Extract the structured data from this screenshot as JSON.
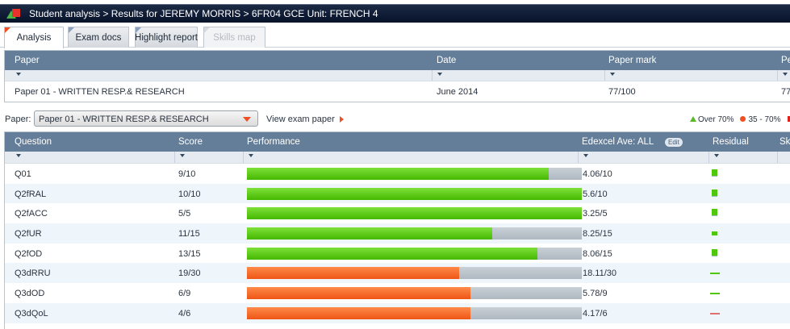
{
  "title": "Student analysis > Results for JEREMY MORRIS > 6FR04 GCE Unit: FRENCH 4",
  "tabs": [
    {
      "label": "Analysis",
      "state": "active"
    },
    {
      "label": "Exam docs",
      "state": "normal"
    },
    {
      "label": "Highlight report",
      "state": "normal"
    },
    {
      "label": "Skills map",
      "state": "disabled"
    }
  ],
  "paper_table": {
    "columns": [
      "Paper",
      "Date",
      "Paper mark",
      "Pe"
    ],
    "row": [
      "Paper 01 - WRITTEN RESP.& RESEARCH",
      "June 2014",
      "77/100",
      "77"
    ]
  },
  "selector": {
    "label": "Paper:",
    "value": "Paper 01 - WRITTEN RESP.& RESEARCH",
    "view_link": "View exam paper"
  },
  "legend": [
    {
      "label": "Over 70%",
      "color": "#5cb82a",
      "icon": "triangle-icon"
    },
    {
      "label": "35 - 70%",
      "color": "#f04e23",
      "icon": "circle-icon"
    },
    {
      "label": "",
      "color": "#e0201b",
      "icon": "square-icon"
    }
  ],
  "colors": {
    "green": "#52c80a",
    "orange": "#f26522",
    "header": "#647e99",
    "residual_green": "#4fc80c",
    "residual_red": "#e07070"
  },
  "question_table": {
    "columns": [
      "Question",
      "Score",
      "Performance",
      "Edexcel Ave: ALL",
      "Residual",
      "Sk"
    ],
    "edit_label": "Edit",
    "rows": [
      {
        "q": "Q01",
        "score": "9/10",
        "perf": 0.9,
        "band": "green",
        "ave": "4.06/10",
        "residual": "square-large",
        "residual_color": "green"
      },
      {
        "q": "Q2fRAL",
        "score": "10/10",
        "perf": 1.0,
        "band": "green",
        "ave": "5.6/10",
        "residual": "square-large",
        "residual_color": "green"
      },
      {
        "q": "Q2fACC",
        "score": "5/5",
        "perf": 1.0,
        "band": "green",
        "ave": "3.25/5",
        "residual": "square-large",
        "residual_color": "green"
      },
      {
        "q": "Q2fUR",
        "score": "11/15",
        "perf": 0.733,
        "band": "green",
        "ave": "8.25/15",
        "residual": "square-small",
        "residual_color": "green"
      },
      {
        "q": "Q2fOD",
        "score": "13/15",
        "perf": 0.867,
        "band": "green",
        "ave": "8.06/15",
        "residual": "square-large",
        "residual_color": "green"
      },
      {
        "q": "Q3dRRU",
        "score": "19/30",
        "perf": 0.633,
        "band": "orange",
        "ave": "18.11/30",
        "residual": "line",
        "residual_color": "green"
      },
      {
        "q": "Q3dOD",
        "score": "6/9",
        "perf": 0.667,
        "band": "orange",
        "ave": "5.78/9",
        "residual": "line",
        "residual_color": "green"
      },
      {
        "q": "Q3dQoL",
        "score": "4/6",
        "perf": 0.667,
        "band": "orange",
        "ave": "4.17/6",
        "residual": "line",
        "residual_color": "red"
      }
    ]
  }
}
